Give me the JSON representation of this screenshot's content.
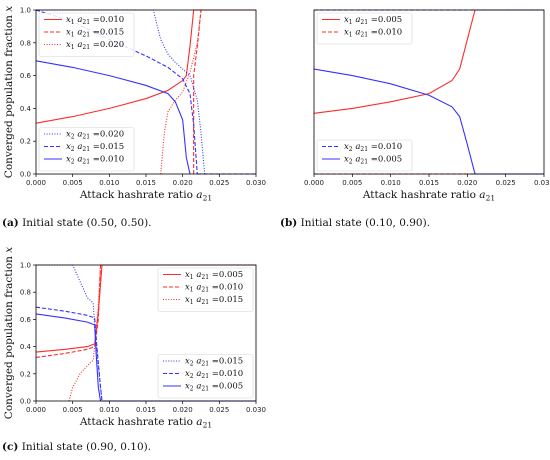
{
  "colors": {
    "x1": "#ff2a2a",
    "x2": "#3333ff",
    "axis": "#000000"
  },
  "chart_data": [
    {
      "id": "a",
      "type": "line",
      "caption_tag": "(a)",
      "caption_text": "Initial state (0.50, 0.50).",
      "xlabel": "Attack hashrate ratio a21",
      "ylabel": "Converged population fraction x",
      "xlim": [
        0,
        0.03
      ],
      "ylim": [
        0,
        1.0
      ],
      "xticks": [
        "0.000",
        "0.005",
        "0.010",
        "0.015",
        "0.020",
        "0.025",
        "0.030"
      ],
      "yticks": [
        "0.0",
        "0.2",
        "0.4",
        "0.6",
        "0.8",
        "1.0"
      ],
      "legends": [
        {
          "position": "top-left",
          "entries": [
            {
              "label": "x1 a21 =0.010",
              "color": "x1",
              "style": "solid"
            },
            {
              "label": "x1 a21 =0.015",
              "color": "x1",
              "style": "dashed"
            },
            {
              "label": "x1 a21 =0.020",
              "color": "x1",
              "style": "dotted"
            }
          ]
        },
        {
          "position": "bottom-left",
          "entries": [
            {
              "label": "x2 a21 =0.020",
              "color": "x2",
              "style": "dotted"
            },
            {
              "label": "x2 a21 =0.015",
              "color": "x2",
              "style": "dashed"
            },
            {
              "label": "x2 a21 =0.010",
              "color": "x2",
              "style": "solid"
            }
          ]
        }
      ],
      "series": [
        {
          "name": "x1 a21 =0.010",
          "color": "x1",
          "style": "solid",
          "points": [
            [
              0,
              0.31
            ],
            [
              0.005,
              0.35
            ],
            [
              0.01,
              0.4
            ],
            [
              0.015,
              0.46
            ],
            [
              0.018,
              0.51
            ],
            [
              0.02,
              0.57
            ],
            [
              0.0205,
              0.6
            ],
            [
              0.021,
              0.78
            ],
            [
              0.0215,
              1.0
            ],
            [
              0.03,
              1.0
            ]
          ]
        },
        {
          "name": "x1 a21 =0.015",
          "color": "x1",
          "style": "dashed",
          "points": [
            [
              0.0215,
              0.0
            ],
            [
              0.0215,
              0.6
            ],
            [
              0.022,
              0.78
            ],
            [
              0.0225,
              1.0
            ],
            [
              0.03,
              1.0
            ]
          ]
        },
        {
          "name": "x1 a21 =0.020",
          "color": "x1",
          "style": "dotted",
          "points": [
            [
              0.017,
              0.0
            ],
            [
              0.0175,
              0.25
            ],
            [
              0.018,
              0.38
            ],
            [
              0.019,
              0.45
            ],
            [
              0.02,
              0.5
            ],
            [
              0.021,
              0.62
            ],
            [
              0.022,
              0.8
            ],
            [
              0.0225,
              1.0
            ],
            [
              0.03,
              1.0
            ]
          ]
        },
        {
          "name": "x2 a21 =0.020",
          "color": "x2",
          "style": "dotted",
          "points": [
            [
              0,
              1.0
            ],
            [
              0.016,
              1.0
            ],
            [
              0.017,
              0.82
            ],
            [
              0.018,
              0.73
            ],
            [
              0.019,
              0.68
            ],
            [
              0.02,
              0.64
            ],
            [
              0.021,
              0.6
            ],
            [
              0.022,
              0.45
            ],
            [
              0.0225,
              0.25
            ],
            [
              0.023,
              0.0
            ]
          ]
        },
        {
          "name": "x2 a21 =0.015",
          "color": "x2",
          "style": "dashed",
          "points": [
            [
              0,
              1.0
            ],
            [
              0.005,
              0.93
            ],
            [
              0.01,
              0.82
            ],
            [
              0.015,
              0.72
            ],
            [
              0.018,
              0.65
            ],
            [
              0.02,
              0.58
            ],
            [
              0.021,
              0.49
            ],
            [
              0.0215,
              0.3
            ],
            [
              0.022,
              0.0
            ]
          ]
        },
        {
          "name": "x2 a21 =0.010",
          "color": "x2",
          "style": "solid",
          "points": [
            [
              0,
              0.69
            ],
            [
              0.005,
              0.65
            ],
            [
              0.01,
              0.6
            ],
            [
              0.015,
              0.54
            ],
            [
              0.018,
              0.49
            ],
            [
              0.019,
              0.44
            ],
            [
              0.02,
              0.33
            ],
            [
              0.0205,
              0.1
            ],
            [
              0.021,
              0.0
            ]
          ]
        },
        {
          "name": "x2 a21 =0.015",
          "color": "x2",
          "style": "dashed",
          "points": [
            [
              0.022,
              0.0
            ],
            [
              0.03,
              0.0
            ]
          ]
        }
      ]
    },
    {
      "id": "b",
      "type": "line",
      "caption_tag": "(b)",
      "caption_text": "Initial state (0.10, 0.90).",
      "xlabel": "Attack hashrate ratio a21",
      "ylabel": "",
      "xlim": [
        0,
        0.03
      ],
      "ylim": [
        0,
        1.0
      ],
      "xticks": [
        "0.000",
        "0.005",
        "0.010",
        "0.015",
        "0.020",
        "0.025",
        "0.030"
      ],
      "yticks": [],
      "legends": [
        {
          "position": "top-left",
          "entries": [
            {
              "label": "x1 a21 =0.005",
              "color": "x1",
              "style": "solid"
            },
            {
              "label": "x1 a21 =0.010",
              "color": "x1",
              "style": "dashed"
            }
          ]
        },
        {
          "position": "bottom-left",
          "entries": [
            {
              "label": "x2 a21 =0.010",
              "color": "x2",
              "style": "dashed"
            },
            {
              "label": "x2 a21 =0.005",
              "color": "x2",
              "style": "solid"
            }
          ]
        }
      ],
      "series": [
        {
          "name": "x1 a21 =0.005",
          "color": "x1",
          "style": "solid",
          "points": [
            [
              0,
              0.37
            ],
            [
              0.005,
              0.4
            ],
            [
              0.01,
              0.44
            ],
            [
              0.015,
              0.49
            ],
            [
              0.018,
              0.57
            ],
            [
              0.019,
              0.64
            ],
            [
              0.02,
              0.82
            ],
            [
              0.021,
              1.0
            ],
            [
              0.03,
              1.0
            ]
          ]
        },
        {
          "name": "x1 a21 =0.010",
          "color": "x1",
          "style": "dashed",
          "points": [
            [
              0,
              0.0
            ],
            [
              0.03,
              0.0
            ]
          ]
        },
        {
          "name": "x2 a21 =0.010",
          "color": "x2",
          "style": "dashed",
          "points": [
            [
              0,
              1.0
            ],
            [
              0.03,
              1.0
            ]
          ]
        },
        {
          "name": "x2 a21 =0.005",
          "color": "x2",
          "style": "solid",
          "points": [
            [
              0,
              0.64
            ],
            [
              0.005,
              0.6
            ],
            [
              0.01,
              0.55
            ],
            [
              0.015,
              0.48
            ],
            [
              0.018,
              0.41
            ],
            [
              0.019,
              0.35
            ],
            [
              0.02,
              0.18
            ],
            [
              0.021,
              0.0
            ],
            [
              0.03,
              0.0
            ]
          ]
        }
      ]
    },
    {
      "id": "c",
      "type": "line",
      "caption_tag": "(c)",
      "caption_text": "Initial state (0.90, 0.10).",
      "xlabel": "Attack hashrate ratio a21",
      "ylabel": "Converged population fraction x",
      "xlim": [
        0,
        0.03
      ],
      "ylim": [
        0,
        1.0
      ],
      "xticks": [
        "0.000",
        "0.005",
        "0.010",
        "0.015",
        "0.020",
        "0.025",
        "0.030"
      ],
      "yticks": [
        "0.0",
        "0.2",
        "0.4",
        "0.6",
        "0.8",
        "1.0"
      ],
      "legends": [
        {
          "position": "top-right",
          "entries": [
            {
              "label": "x1 a21 =0.005",
              "color": "x1",
              "style": "solid"
            },
            {
              "label": "x1 a21 =0.010",
              "color": "x1",
              "style": "dashed"
            },
            {
              "label": "x1 a21 =0.015",
              "color": "x1",
              "style": "dotted"
            }
          ]
        },
        {
          "position": "bottom-right",
          "entries": [
            {
              "label": "x2 a21 =0.015",
              "color": "x2",
              "style": "dotted"
            },
            {
              "label": "x2 a21 =0.010",
              "color": "x2",
              "style": "dashed"
            },
            {
              "label": "x2 a21 =0.005",
              "color": "x2",
              "style": "solid"
            }
          ]
        }
      ],
      "series": [
        {
          "name": "x1 a21 =0.005",
          "color": "x1",
          "style": "solid",
          "points": [
            [
              0,
              0.36
            ],
            [
              0.004,
              0.38
            ],
            [
              0.007,
              0.4
            ],
            [
              0.008,
              0.42
            ],
            [
              0.0085,
              0.65
            ],
            [
              0.009,
              1.0
            ],
            [
              0.03,
              1.0
            ]
          ]
        },
        {
          "name": "x1 a21 =0.010",
          "color": "x1",
          "style": "dashed",
          "points": [
            [
              0,
              0.32
            ],
            [
              0.004,
              0.35
            ],
            [
              0.007,
              0.38
            ],
            [
              0.008,
              0.4
            ],
            [
              0.0085,
              0.6
            ],
            [
              0.0088,
              1.0
            ],
            [
              0.03,
              1.0
            ]
          ]
        },
        {
          "name": "x1 a21 =0.015",
          "color": "x1",
          "style": "dotted",
          "points": [
            [
              0.0045,
              0.0
            ],
            [
              0.005,
              0.1
            ],
            [
              0.006,
              0.2
            ],
            [
              0.007,
              0.26
            ],
            [
              0.0078,
              0.3
            ],
            [
              0.008,
              0.4
            ],
            [
              0.0085,
              0.7
            ],
            [
              0.0088,
              1.0
            ]
          ]
        },
        {
          "name": "x2 a21 =0.015",
          "color": "x2",
          "style": "dotted",
          "points": [
            [
              0,
              1.0
            ],
            [
              0.005,
              1.0
            ],
            [
              0.006,
              0.88
            ],
            [
              0.007,
              0.76
            ],
            [
              0.0078,
              0.72
            ],
            [
              0.008,
              0.55
            ],
            [
              0.0085,
              0.25
            ],
            [
              0.009,
              0.0
            ]
          ]
        },
        {
          "name": "x2 a21 =0.010",
          "color": "x2",
          "style": "dashed",
          "points": [
            [
              0,
              0.69
            ],
            [
              0.004,
              0.66
            ],
            [
              0.007,
              0.63
            ],
            [
              0.008,
              0.61
            ],
            [
              0.0083,
              0.4
            ],
            [
              0.0088,
              0.1
            ],
            [
              0.009,
              0.0
            ]
          ]
        },
        {
          "name": "x2 a21 =0.005",
          "color": "x2",
          "style": "solid",
          "points": [
            [
              0,
              0.64
            ],
            [
              0.004,
              0.61
            ],
            [
              0.007,
              0.58
            ],
            [
              0.008,
              0.56
            ],
            [
              0.0082,
              0.35
            ],
            [
              0.0085,
              0.1
            ],
            [
              0.0088,
              0.0
            ],
            [
              0.03,
              0.0
            ]
          ]
        }
      ]
    }
  ]
}
